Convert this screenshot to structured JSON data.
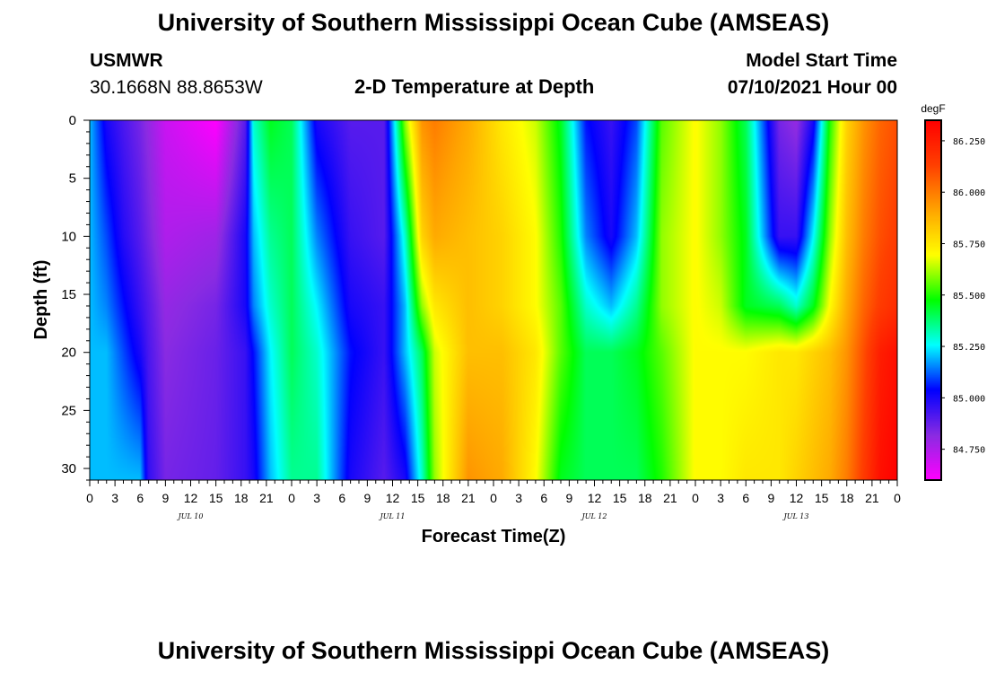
{
  "header": {
    "title": "University of Southern Mississippi Ocean Cube (AMSEAS)",
    "station": "USMWR",
    "coords": "30.1668N  88.8653W",
    "subtitle": "2-D Temperature at Depth",
    "start_label": "Model Start Time",
    "start_value": "07/10/2021 Hour 00"
  },
  "footer": {
    "title": "University of Southern Mississippi Ocean Cube (AMSEAS)"
  },
  "chart_data": {
    "type": "heatmap",
    "title": "2-D Temperature at Depth",
    "xlabel": "Forecast Time(Z)",
    "ylabel": "Depth (ft)",
    "units": "degF",
    "xlim": [
      0,
      96
    ],
    "ylim": [
      0,
      31
    ],
    "y_inverted": true,
    "x_tick_labels": [
      "0",
      "3",
      "6",
      "9",
      "12",
      "15",
      "18",
      "21",
      "0",
      "3",
      "6",
      "9",
      "12",
      "15",
      "18",
      "21",
      "0",
      "3",
      "6",
      "9",
      "12",
      "15",
      "18",
      "21",
      "0",
      "3",
      "6",
      "9",
      "12",
      "15",
      "18",
      "21",
      "0"
    ],
    "y_ticks": [
      0,
      5,
      10,
      15,
      20,
      25,
      30
    ],
    "day_labels": [
      "JUL 10",
      "JUL 11",
      "JUL 12",
      "JUL 13"
    ],
    "colorbar": {
      "ticks": [
        "86.250",
        "86.000",
        "85.750",
        "85.500",
        "85.250",
        "85.000",
        "84.750"
      ],
      "min": 84.6,
      "max": 86.35,
      "colors": [
        "#ff00ff",
        "#8a2be2",
        "#0000ff",
        "#00ffff",
        "#00ff00",
        "#ffff00",
        "#ffa500",
        "#ff4000",
        "#ff0000"
      ]
    },
    "profiles_hours": [
      0,
      2,
      4,
      6,
      7,
      9,
      15,
      18.5,
      19.5,
      21.5,
      24,
      27,
      31,
      35,
      37.5,
      39.5,
      41,
      45,
      49,
      53,
      56,
      59,
      62,
      65,
      68,
      72,
      75,
      78,
      82,
      84,
      86,
      88,
      90,
      92,
      94,
      96
    ],
    "profiles_depth_ft": [
      0,
      10,
      16,
      20,
      31
    ],
    "profiles_degF": [
      [
        85.2,
        85.2,
        85.2,
        85.2,
        85.2
      ],
      [
        85.0,
        85.1,
        85.15,
        85.2,
        85.2
      ],
      [
        84.92,
        84.98,
        85.05,
        85.1,
        85.2
      ],
      [
        84.85,
        84.9,
        84.95,
        85.0,
        85.2
      ],
      [
        84.8,
        84.85,
        84.9,
        84.92,
        84.96
      ],
      [
        84.7,
        84.75,
        84.8,
        84.82,
        84.85
      ],
      [
        84.6,
        84.78,
        84.85,
        84.87,
        84.88
      ],
      [
        84.9,
        85.0,
        85.0,
        84.95,
        84.95
      ],
      [
        85.3,
        85.2,
        85.15,
        85.05,
        85.0
      ],
      [
        85.45,
        85.35,
        85.3,
        85.25,
        85.2
      ],
      [
        85.4,
        85.4,
        85.4,
        85.4,
        85.35
      ],
      [
        85.0,
        85.15,
        85.25,
        85.3,
        85.35
      ],
      [
        84.9,
        84.95,
        85.0,
        85.05,
        85.0
      ],
      [
        84.9,
        84.9,
        84.95,
        84.95,
        84.9
      ],
      [
        85.6,
        85.3,
        85.2,
        85.2,
        85.0
      ],
      [
        85.95,
        85.8,
        85.6,
        85.4,
        85.3
      ],
      [
        86.0,
        85.9,
        85.75,
        85.65,
        85.6
      ],
      [
        85.9,
        85.85,
        85.85,
        85.85,
        85.95
      ],
      [
        85.75,
        85.8,
        85.8,
        85.85,
        85.9
      ],
      [
        85.65,
        85.7,
        85.7,
        85.75,
        85.7
      ],
      [
        85.45,
        85.5,
        85.55,
        85.55,
        85.45
      ],
      [
        85.05,
        85.15,
        85.3,
        85.4,
        85.4
      ],
      [
        84.95,
        85.0,
        85.2,
        85.4,
        85.4
      ],
      [
        85.1,
        85.2,
        85.35,
        85.45,
        85.4
      ],
      [
        85.55,
        85.6,
        85.6,
        85.55,
        85.5
      ],
      [
        85.7,
        85.7,
        85.7,
        85.7,
        85.7
      ],
      [
        85.6,
        85.6,
        85.65,
        85.7,
        85.7
      ],
      [
        85.4,
        85.45,
        85.45,
        85.7,
        85.75
      ],
      [
        84.85,
        84.95,
        85.4,
        85.75,
        85.75
      ],
      [
        84.8,
        84.95,
        85.3,
        85.75,
        85.8
      ],
      [
        85.0,
        85.25,
        85.45,
        85.8,
        85.85
      ],
      [
        85.5,
        85.6,
        85.7,
        85.85,
        85.9
      ],
      [
        85.8,
        85.85,
        85.9,
        85.95,
        86.0
      ],
      [
        85.95,
        86.0,
        86.05,
        86.1,
        86.15
      ],
      [
        86.05,
        86.1,
        86.15,
        86.25,
        86.3
      ],
      [
        86.1,
        86.15,
        86.2,
        86.3,
        86.35
      ]
    ]
  }
}
